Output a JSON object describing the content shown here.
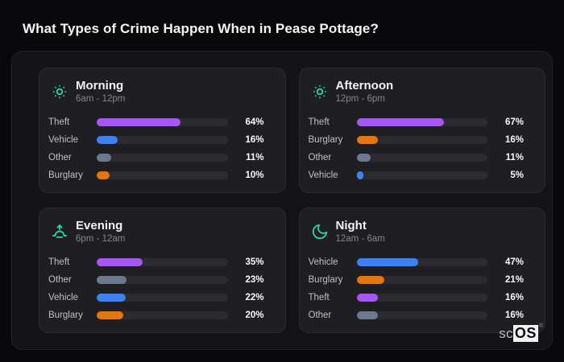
{
  "page": {
    "title": "What Types of Crime Happen When in Pease Pottage?"
  },
  "colors": {
    "purple": "#a855f7",
    "blue": "#3b82f6",
    "slate": "#6c7a8f",
    "orange": "#e8750c",
    "accent_teal": "#2bd4a4",
    "card_bg": "#1e1e23",
    "panel_bg": "#141418",
    "track": "#2b2b30"
  },
  "cards": [
    {
      "id": "morning",
      "icon": "sun-icon",
      "title": "Morning",
      "time": "6am - 12pm",
      "rows": [
        {
          "label": "Theft",
          "value": 64,
          "pct": "64%",
          "color": "purple"
        },
        {
          "label": "Vehicle",
          "value": 16,
          "pct": "16%",
          "color": "blue"
        },
        {
          "label": "Other",
          "value": 11,
          "pct": "11%",
          "color": "slate"
        },
        {
          "label": "Burglary",
          "value": 10,
          "pct": "10%",
          "color": "orange"
        }
      ]
    },
    {
      "id": "afternoon",
      "icon": "sun-icon",
      "title": "Afternoon",
      "time": "12pm - 6pm",
      "rows": [
        {
          "label": "Theft",
          "value": 67,
          "pct": "67%",
          "color": "purple"
        },
        {
          "label": "Burglary",
          "value": 16,
          "pct": "16%",
          "color": "orange"
        },
        {
          "label": "Other",
          "value": 11,
          "pct": "11%",
          "color": "slate"
        },
        {
          "label": "Vehicle",
          "value": 5,
          "pct": "5%",
          "color": "blue"
        }
      ]
    },
    {
      "id": "evening",
      "icon": "sunset-icon",
      "title": "Evening",
      "time": "6pm - 12am",
      "rows": [
        {
          "label": "Theft",
          "value": 35,
          "pct": "35%",
          "color": "purple"
        },
        {
          "label": "Other",
          "value": 23,
          "pct": "23%",
          "color": "slate"
        },
        {
          "label": "Vehicle",
          "value": 22,
          "pct": "22%",
          "color": "blue"
        },
        {
          "label": "Burglary",
          "value": 20,
          "pct": "20%",
          "color": "orange"
        }
      ]
    },
    {
      "id": "night",
      "icon": "moon-icon",
      "title": "Night",
      "time": "12am - 6am",
      "rows": [
        {
          "label": "Vehicle",
          "value": 47,
          "pct": "47%",
          "color": "blue"
        },
        {
          "label": "Burglary",
          "value": 21,
          "pct": "21%",
          "color": "orange"
        },
        {
          "label": "Theft",
          "value": 16,
          "pct": "16%",
          "color": "purple"
        },
        {
          "label": "Other",
          "value": 16,
          "pct": "16%",
          "color": "slate"
        }
      ]
    }
  ],
  "logo": {
    "prefix": "sc",
    "suffix": "OS",
    "registered": "®"
  },
  "chart_data": [
    {
      "type": "bar",
      "title": "Morning",
      "subtitle": "6am - 12pm",
      "categories": [
        "Theft",
        "Vehicle",
        "Other",
        "Burglary"
      ],
      "values": [
        64,
        16,
        11,
        10
      ],
      "unit": "%",
      "xlim": [
        0,
        100
      ],
      "orientation": "horizontal",
      "bar_colors": [
        "#a855f7",
        "#3b82f6",
        "#6c7a8f",
        "#e8750c"
      ]
    },
    {
      "type": "bar",
      "title": "Afternoon",
      "subtitle": "12pm - 6pm",
      "categories": [
        "Theft",
        "Burglary",
        "Other",
        "Vehicle"
      ],
      "values": [
        67,
        16,
        11,
        5
      ],
      "unit": "%",
      "xlim": [
        0,
        100
      ],
      "orientation": "horizontal",
      "bar_colors": [
        "#a855f7",
        "#e8750c",
        "#6c7a8f",
        "#3b82f6"
      ]
    },
    {
      "type": "bar",
      "title": "Evening",
      "subtitle": "6pm - 12am",
      "categories": [
        "Theft",
        "Other",
        "Vehicle",
        "Burglary"
      ],
      "values": [
        35,
        23,
        22,
        20
      ],
      "unit": "%",
      "xlim": [
        0,
        100
      ],
      "orientation": "horizontal",
      "bar_colors": [
        "#a855f7",
        "#6c7a8f",
        "#3b82f6",
        "#e8750c"
      ]
    },
    {
      "type": "bar",
      "title": "Night",
      "subtitle": "12am - 6am",
      "categories": [
        "Vehicle",
        "Burglary",
        "Theft",
        "Other"
      ],
      "values": [
        47,
        21,
        16,
        16
      ],
      "unit": "%",
      "xlim": [
        0,
        100
      ],
      "orientation": "horizontal",
      "bar_colors": [
        "#3b82f6",
        "#e8750c",
        "#a855f7",
        "#6c7a8f"
      ]
    }
  ]
}
